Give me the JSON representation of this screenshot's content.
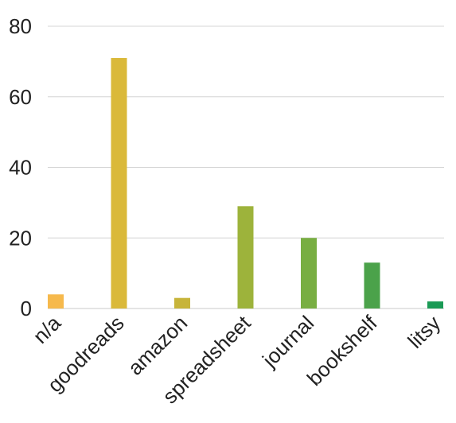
{
  "chart_data": {
    "type": "bar",
    "title": "",
    "xlabel": "",
    "ylabel": "",
    "categories": [
      "n/a",
      "goodreads",
      "amazon",
      "spreadsheet",
      "journal",
      "bookshelf",
      "litsy"
    ],
    "values": [
      4,
      71,
      3,
      29,
      20,
      13,
      2
    ],
    "colors": [
      "#f6b94c",
      "#dab93a",
      "#c7b43a",
      "#9db33b",
      "#78ae42",
      "#4ba24a",
      "#1a9a55"
    ],
    "ylim": [
      0,
      80
    ],
    "yticks": [
      0,
      20,
      40,
      60,
      80
    ],
    "grid": true,
    "legend": "none"
  }
}
